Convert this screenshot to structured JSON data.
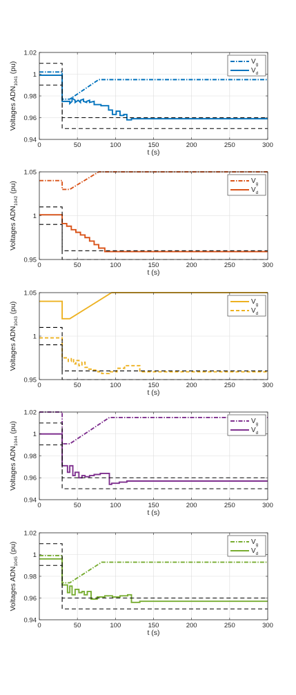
{
  "chart_data": [
    {
      "type": "line",
      "ylabel_main": "Voltages ADN",
      "ylabel_sub": "1041",
      "ylabel_unit": " (pu)",
      "xlabel": "t (s)",
      "xlim": [
        0,
        300
      ],
      "ylim": [
        0.94,
        1.02
      ],
      "xticks": [
        0,
        50,
        100,
        150,
        200,
        250,
        300
      ],
      "xtick_labels": [
        "0",
        "50",
        "100",
        "150",
        "200",
        "250",
        "300"
      ],
      "yticks": [
        0.94,
        0.96,
        0.98,
        1.0,
        1.02
      ],
      "ytick_labels": [
        "0.94",
        "0.96",
        "0.98",
        "1",
        "1.02"
      ],
      "grid": true,
      "legend_position": "top-right",
      "color": "#0072BD",
      "legend": [
        {
          "main": "V",
          "sub": "g",
          "style": "dashdot"
        },
        {
          "main": "V",
          "sub": "d",
          "style": "solid"
        }
      ],
      "series": [
        {
          "style": "dashdot",
          "x": [
            0,
            30,
            30,
            40,
            78,
            300
          ],
          "y": [
            1.002,
            1.002,
            0.977,
            0.977,
            0.995,
            0.995
          ]
        },
        {
          "style": "solid",
          "x": [
            0,
            30,
            30,
            40,
            40,
            43,
            43,
            47,
            47,
            51,
            51,
            54,
            54,
            58,
            58,
            62,
            62,
            66,
            66,
            72,
            72,
            81,
            81,
            91,
            91,
            96,
            96,
            101,
            101,
            106,
            106,
            111,
            111,
            115,
            115,
            121,
            121,
            131,
            131,
            300
          ],
          "y": [
            0.999,
            0.999,
            0.975,
            0.975,
            0.973,
            0.975,
            0.978,
            0.976,
            0.974,
            0.976,
            0.976,
            0.974,
            0.976,
            0.977,
            0.975,
            0.974,
            0.975,
            0.976,
            0.974,
            0.975,
            0.972,
            0.972,
            0.971,
            0.971,
            0.967,
            0.967,
            0.963,
            0.963,
            0.966,
            0.966,
            0.962,
            0.962,
            0.963,
            0.963,
            0.958,
            0.958,
            0.959,
            0.959,
            0.959,
            0.959
          ]
        },
        {
          "style": "bound",
          "x": [
            0,
            30,
            30,
            300
          ],
          "y": [
            1.01,
            1.01,
            0.96,
            0.96
          ]
        },
        {
          "style": "bound",
          "x": [
            0,
            30,
            30,
            300
          ],
          "y": [
            0.99,
            0.99,
            0.95,
            0.95
          ]
        }
      ]
    },
    {
      "type": "line",
      "ylabel_main": "Voltages ADN",
      "ylabel_sub": "1042",
      "ylabel_unit": " (pu)",
      "xlabel": "t (s)",
      "xlim": [
        0,
        300
      ],
      "ylim": [
        0.95,
        1.05
      ],
      "xticks": [
        0,
        50,
        100,
        150,
        200,
        250,
        300
      ],
      "xtick_labels": [
        "0",
        "50",
        "100",
        "150",
        "200",
        "250",
        "300"
      ],
      "yticks": [
        0.95,
        1.0,
        1.05
      ],
      "ytick_labels": [
        "0.95",
        "1",
        "1.05"
      ],
      "grid": true,
      "legend_position": "top-right",
      "color": "#D95319",
      "legend": [
        {
          "main": "V",
          "sub": "g",
          "style": "dashdot"
        },
        {
          "main": "V",
          "sub": "d",
          "style": "solid"
        }
      ],
      "series": [
        {
          "style": "dashdot",
          "x": [
            0,
            30,
            30,
            40,
            78,
            300
          ],
          "y": [
            1.04,
            1.04,
            1.03,
            1.03,
            1.05,
            1.05
          ]
        },
        {
          "style": "solid",
          "x": [
            0,
            30,
            30,
            36,
            36,
            42,
            42,
            48,
            48,
            54,
            54,
            60,
            60,
            66,
            66,
            72,
            72,
            78,
            78,
            86,
            86,
            300
          ],
          "y": [
            1.001,
            1.001,
            0.991,
            0.991,
            0.988,
            0.988,
            0.984,
            0.984,
            0.981,
            0.981,
            0.978,
            0.978,
            0.975,
            0.975,
            0.971,
            0.971,
            0.967,
            0.967,
            0.963,
            0.963,
            0.959,
            0.959
          ]
        },
        {
          "style": "bound",
          "x": [
            0,
            30,
            30,
            300
          ],
          "y": [
            1.01,
            1.01,
            0.96,
            0.96
          ]
        },
        {
          "style": "bound",
          "x": [
            0,
            30,
            30,
            300
          ],
          "y": [
            0.99,
            0.99,
            0.95,
            0.95
          ]
        }
      ]
    },
    {
      "type": "line",
      "ylabel_main": "Voltages ADN",
      "ylabel_sub": "1043",
      "ylabel_unit": " (pu)",
      "xlabel": "t (s)",
      "xlim": [
        0,
        300
      ],
      "ylim": [
        0.95,
        1.05
      ],
      "xticks": [
        0,
        50,
        100,
        150,
        200,
        250,
        300
      ],
      "xtick_labels": [
        "0",
        "50",
        "100",
        "150",
        "200",
        "250",
        "300"
      ],
      "yticks": [
        0.95,
        1.0,
        1.05
      ],
      "ytick_labels": [
        "0.95",
        "1",
        "1.05"
      ],
      "grid": true,
      "legend_position": "top-right",
      "color": "#EDB120",
      "legend": [
        {
          "main": "V",
          "sub": "g",
          "style": "solid"
        },
        {
          "main": "V",
          "sub": "d",
          "style": "dashed"
        }
      ],
      "series": [
        {
          "style": "solid",
          "x": [
            0,
            30,
            30,
            40,
            95,
            300
          ],
          "y": [
            1.04,
            1.04,
            1.02,
            1.02,
            1.05,
            1.05
          ]
        },
        {
          "style": "dashed",
          "x": [
            0,
            30,
            30,
            38,
            38,
            42,
            42,
            45,
            45,
            48,
            48,
            52,
            52,
            56,
            56,
            60,
            60,
            64,
            64,
            70,
            70,
            77,
            77,
            82,
            82,
            92,
            92,
            102,
            102,
            112,
            112,
            118,
            118,
            132,
            132,
            300
          ],
          "y": [
            0.998,
            0.998,
            0.975,
            0.975,
            0.971,
            0.971,
            0.974,
            0.974,
            0.968,
            0.968,
            0.972,
            0.972,
            0.966,
            0.966,
            0.97,
            0.97,
            0.964,
            0.964,
            0.962,
            0.962,
            0.961,
            0.961,
            0.959,
            0.959,
            0.957,
            0.957,
            0.959,
            0.959,
            0.963,
            0.963,
            0.966,
            0.966,
            0.966,
            0.966,
            0.959,
            0.959
          ]
        },
        {
          "style": "bound",
          "x": [
            0,
            30,
            30,
            300
          ],
          "y": [
            1.01,
            1.01,
            0.96,
            0.96
          ]
        },
        {
          "style": "bound",
          "x": [
            0,
            30,
            30,
            300
          ],
          "y": [
            0.99,
            0.99,
            0.95,
            0.95
          ]
        }
      ]
    },
    {
      "type": "line",
      "ylabel_main": "Voltages ADN",
      "ylabel_sub": "1044",
      "ylabel_unit": " (pu)",
      "xlabel": "t (s)",
      "xlim": [
        0,
        300
      ],
      "ylim": [
        0.94,
        1.02
      ],
      "xticks": [
        0,
        50,
        100,
        150,
        200,
        250,
        300
      ],
      "xtick_labels": [
        "0",
        "50",
        "100",
        "150",
        "200",
        "250",
        "300"
      ],
      "yticks": [
        0.94,
        0.96,
        0.98,
        1.0,
        1.02
      ],
      "ytick_labels": [
        "0.94",
        "0.96",
        "0.98",
        "1",
        "1.02"
      ],
      "grid": true,
      "legend_position": "top-right",
      "color": "#7E2F8E",
      "legend": [
        {
          "main": "V",
          "sub": "g",
          "style": "dashdot"
        },
        {
          "main": "V",
          "sub": "d",
          "style": "solid"
        }
      ],
      "series": [
        {
          "style": "dashdot",
          "x": [
            0,
            30,
            30,
            40,
            92,
            300
          ],
          "y": [
            1.02,
            1.02,
            0.991,
            0.991,
            1.015,
            1.015
          ]
        },
        {
          "style": "solid",
          "x": [
            0,
            30,
            30,
            37,
            37,
            40,
            40,
            44,
            44,
            47,
            47,
            52,
            52,
            56,
            56,
            60,
            60,
            66,
            66,
            72,
            72,
            80,
            80,
            88,
            88,
            92,
            92,
            95,
            95,
            105,
            105,
            115,
            115,
            300
          ],
          "y": [
            1.0,
            1.0,
            0.971,
            0.971,
            0.965,
            0.965,
            0.971,
            0.971,
            0.962,
            0.962,
            0.965,
            0.965,
            0.96,
            0.96,
            0.962,
            0.962,
            0.961,
            0.961,
            0.962,
            0.962,
            0.963,
            0.963,
            0.964,
            0.964,
            0.964,
            0.964,
            0.954,
            0.954,
            0.955,
            0.955,
            0.956,
            0.956,
            0.957,
            0.957
          ]
        },
        {
          "style": "bound",
          "x": [
            0,
            30,
            30,
            300
          ],
          "y": [
            1.01,
            1.01,
            0.96,
            0.96
          ]
        },
        {
          "style": "bound",
          "x": [
            0,
            30,
            30,
            300
          ],
          "y": [
            0.99,
            0.99,
            0.95,
            0.95
          ]
        }
      ]
    },
    {
      "type": "line",
      "ylabel_main": "Voltages ADN",
      "ylabel_sub": "1045",
      "ylabel_unit": " (pu)",
      "xlabel": "t (s)",
      "xlim": [
        0,
        300
      ],
      "ylim": [
        0.94,
        1.02
      ],
      "xticks": [
        0,
        50,
        100,
        150,
        200,
        250,
        300
      ],
      "xtick_labels": [
        "0",
        "50",
        "100",
        "150",
        "200",
        "250",
        "300"
      ],
      "yticks": [
        0.94,
        0.96,
        0.98,
        1.0,
        1.02
      ],
      "ytick_labels": [
        "0.94",
        "0.96",
        "0.98",
        "1",
        "1.02"
      ],
      "grid": true,
      "legend_position": "top-right",
      "color": "#77AC30",
      "legend": [
        {
          "main": "V",
          "sub": "g",
          "style": "dashdot"
        },
        {
          "main": "V",
          "sub": "d",
          "style": "solid"
        }
      ],
      "series": [
        {
          "style": "dashdot",
          "x": [
            0,
            30,
            30,
            40,
            82,
            300
          ],
          "y": [
            0.999,
            0.999,
            0.974,
            0.974,
            0.993,
            0.993
          ]
        },
        {
          "style": "solid",
          "x": [
            0,
            30,
            30,
            37,
            37,
            40,
            40,
            43,
            43,
            47,
            47,
            52,
            52,
            56,
            56,
            59,
            59,
            63,
            63,
            68,
            68,
            76,
            76,
            86,
            86,
            96,
            96,
            106,
            106,
            116,
            116,
            121,
            121,
            132,
            132,
            300
          ],
          "y": [
            0.996,
            0.996,
            0.972,
            0.972,
            0.965,
            0.965,
            0.971,
            0.971,
            0.963,
            0.963,
            0.968,
            0.968,
            0.965,
            0.965,
            0.966,
            0.966,
            0.963,
            0.963,
            0.966,
            0.966,
            0.959,
            0.959,
            0.961,
            0.961,
            0.962,
            0.962,
            0.961,
            0.961,
            0.962,
            0.962,
            0.963,
            0.963,
            0.956,
            0.956,
            0.957,
            0.957
          ]
        },
        {
          "style": "bound",
          "x": [
            0,
            30,
            30,
            300
          ],
          "y": [
            1.01,
            1.01,
            0.96,
            0.96
          ]
        },
        {
          "style": "bound",
          "x": [
            0,
            30,
            30,
            300
          ],
          "y": [
            0.99,
            0.99,
            0.95,
            0.95
          ]
        }
      ]
    }
  ]
}
